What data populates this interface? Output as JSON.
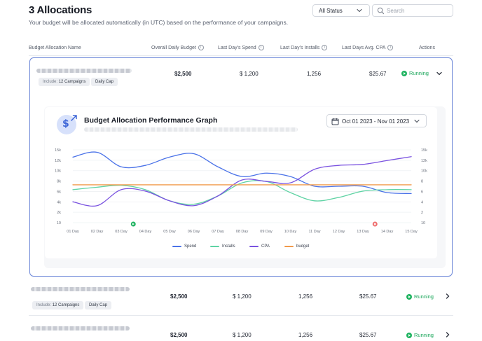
{
  "header": {
    "title": "3 Allocations",
    "subtitle": "Your budget will be allocated automatically (in UTC) based on the performance of your campaigns.",
    "status_filter": "All Status",
    "search_placeholder": "Search"
  },
  "columns": {
    "name": "Budget Allocation Name",
    "overall_budget": "Overall Daily Budget",
    "last_spend": "Last Day's Spend",
    "last_installs": "Last Day's Installs",
    "last_cpa": "Last Days Avg. CPA",
    "actions": "Actions"
  },
  "rows": [
    {
      "tag_include_prefix": "Include:",
      "tag_include_value": "12 Campaigns",
      "tag_cap": "Daily Cap",
      "budget": "$2,500",
      "spend": "$ 1,200",
      "installs": "1,256",
      "cpa": "$25.67",
      "status": "Running",
      "expanded": true
    },
    {
      "tag_include_prefix": "Include:",
      "tag_include_value": "12 Campaigns",
      "tag_cap": "Daily Cap",
      "budget": "$2,500",
      "spend": "$ 1,200",
      "installs": "1,256",
      "cpa": "$25.67",
      "status": "Running",
      "expanded": false
    },
    {
      "budget": "$2,500",
      "spend": "$ 1,200",
      "installs": "1,256",
      "cpa": "$25.67",
      "status": "Running",
      "expanded": false
    }
  ],
  "graph": {
    "title": "Budget Allocation Performance Graph",
    "date_range": "Oct 01 2023 - Nov 01 2023"
  },
  "chart_data": {
    "type": "line",
    "x": [
      "01 Day",
      "02 Day",
      "03 Day",
      "04 Day",
      "05 Day",
      "06 Day",
      "07 Day",
      "08 Day",
      "09 Day",
      "10 Day",
      "11 Day",
      "12 Day",
      "13 Day",
      "14 Day",
      "15 Day"
    ],
    "y_ticks_left": [
      "15k",
      "12k",
      "10k",
      "8k",
      "6k",
      "4k",
      "2k",
      "10"
    ],
    "y_ticks_right": [
      "15k",
      "12k",
      "10k",
      "8",
      "6",
      "4",
      "2",
      "10"
    ],
    "ylim": [
      0,
      15000
    ],
    "grid": true,
    "legend_position": "bottom",
    "series": [
      {
        "name": "Spend",
        "color": "#4a72e8",
        "values": [
          13500,
          14500,
          11500,
          11800,
          13500,
          14200,
          11500,
          9500,
          10200,
          9500,
          7500,
          7500,
          7500,
          6200,
          6000
        ]
      },
      {
        "name": "Installs",
        "color": "#5fd3a4",
        "values": [
          6800,
          7300,
          7700,
          6800,
          4500,
          3800,
          5500,
          8200,
          8500,
          6200,
          4500,
          5200,
          6500,
          6800,
          6800
        ]
      },
      {
        "name": "CPA",
        "color": "#7a52e0",
        "values": [
          4300,
          3500,
          6800,
          6500,
          4500,
          3500,
          5500,
          8800,
          8500,
          8200,
          11000,
          11800,
          12000,
          12800,
          13600
        ]
      },
      {
        "name": "budget",
        "color": "#f19a4a",
        "values": [
          7800,
          7800,
          7800,
          7800,
          7800,
          7800,
          7800,
          7800,
          7800,
          7800,
          7800,
          7800,
          7800,
          7800,
          7800
        ]
      }
    ],
    "markers": [
      {
        "x": "03 Day",
        "kind": "success",
        "color": "#22b463"
      },
      {
        "x": "13 Day",
        "kind": "error",
        "color": "#ee6a6a"
      }
    ]
  }
}
